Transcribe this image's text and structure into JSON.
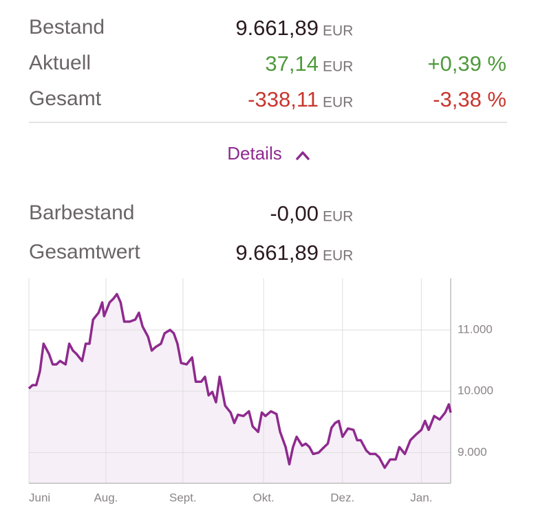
{
  "summary": {
    "rows": [
      {
        "label": "Bestand",
        "value": "9.661,89",
        "unit": "EUR"
      },
      {
        "label": "Aktuell",
        "value": "37,14",
        "unit": "EUR",
        "percent": "+0,39 %"
      },
      {
        "label": "Gesamt",
        "value": "-338,11",
        "unit": "EUR",
        "percent": "-3,38 %"
      }
    ]
  },
  "details": {
    "label": "Details"
  },
  "cash": {
    "rows": [
      {
        "label": "Barbestand",
        "value": "-0,00",
        "unit": "EUR"
      },
      {
        "label": "Gesamtwert",
        "value": "9.661,89",
        "unit": "EUR"
      }
    ]
  },
  "chart_data": {
    "type": "line",
    "color": "#8e2a8e",
    "fill": "#f6eff7",
    "x": [
      0,
      2,
      4,
      6,
      8,
      11,
      13,
      15,
      17,
      20,
      22,
      24,
      26,
      29,
      31,
      33,
      35,
      38,
      40,
      41,
      44,
      46,
      48,
      50,
      52,
      55,
      58,
      60,
      62,
      65,
      67,
      69,
      72,
      74,
      77,
      79,
      81,
      83,
      86,
      89,
      91,
      94,
      96,
      98,
      100,
      102,
      104,
      107,
      110,
      112,
      114,
      117,
      120,
      122,
      125,
      127,
      129,
      132,
      135,
      137,
      140,
      142,
      144,
      146,
      149,
      151,
      153,
      155,
      158,
      161,
      163,
      165,
      167,
      169,
      171,
      174,
      177,
      179,
      181,
      184,
      186,
      189,
      191,
      194,
      197,
      200,
      202,
      205,
      208,
      211,
      214,
      216,
      218,
      221,
      224,
      227,
      229,
      230
    ],
    "values": [
      10045,
      10101,
      10100,
      10326,
      10775,
      10607,
      10438,
      10438,
      10494,
      10438,
      10775,
      10663,
      10607,
      10494,
      10775,
      10775,
      11169,
      11281,
      11449,
      11225,
      11449,
      11506,
      11584,
      11449,
      11135,
      11135,
      11169,
      11281,
      11056,
      10888,
      10663,
      10719,
      10775,
      10944,
      11000,
      10944,
      10775,
      10461,
      10438,
      10551,
      10157,
      10157,
      10236,
      9933,
      9989,
      9820,
      10236,
      9764,
      9652,
      9483,
      9618,
      9596,
      9674,
      9427,
      9337,
      9652,
      9596,
      9674,
      9629,
      9337,
      9090,
      8809,
      9090,
      9258,
      9112,
      9146,
      9090,
      8978,
      9000,
      9090,
      9146,
      9404,
      9483,
      9517,
      9258,
      9393,
      9371,
      9202,
      9202,
      9034,
      8978,
      8978,
      8921,
      8753,
      8888,
      8888,
      9090,
      8978,
      9202,
      9292,
      9371,
      9517,
      9371,
      9596,
      9539,
      9652,
      9787,
      9652
    ],
    "xlim": [
      0,
      230
    ],
    "xticks": [
      {
        "value": 0,
        "label": "Juni"
      },
      {
        "value": 42,
        "label": "Aug."
      },
      {
        "value": 84,
        "label": "Sept."
      },
      {
        "value": 128,
        "label": "Okt."
      },
      {
        "value": 171,
        "label": "Dez."
      },
      {
        "value": 214,
        "label": "Jan."
      }
    ],
    "ylim": [
      8500,
      11840
    ],
    "yticks": [
      {
        "value": 9000,
        "label": "9.000"
      },
      {
        "value": 10000,
        "label": "10.000"
      },
      {
        "value": 11000,
        "label": "11.000"
      }
    ],
    "grid": true
  }
}
